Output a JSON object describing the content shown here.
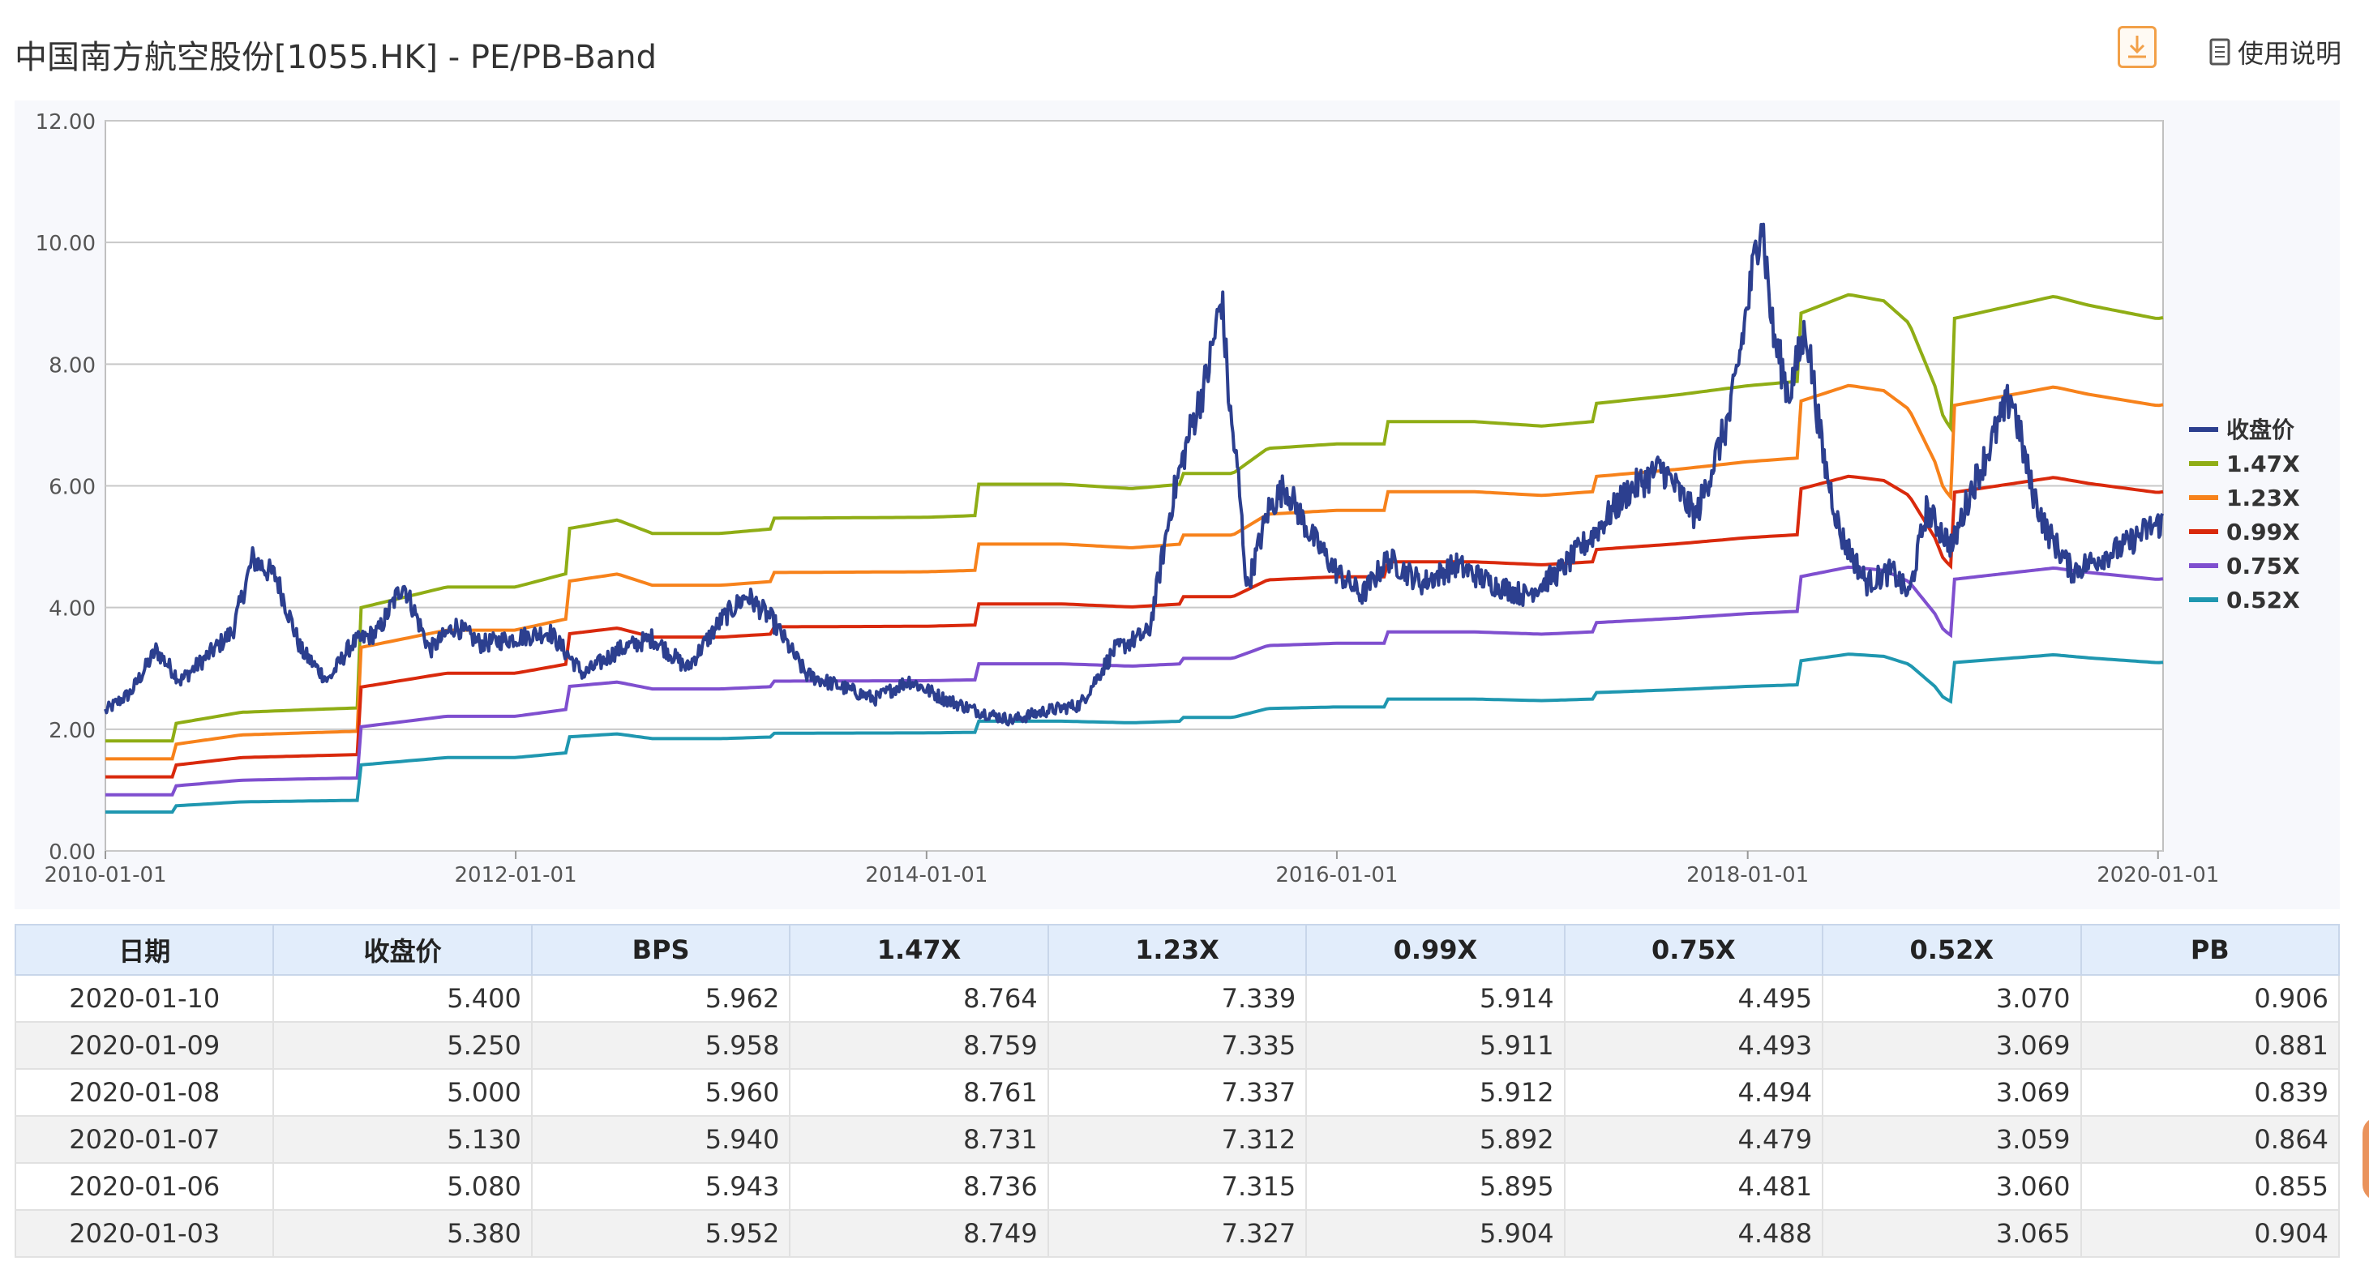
{
  "page": {
    "title": "中国南方航空股份[1055.HK] - PE/PB-Band",
    "help_label": "使用说明",
    "download_icon": "download-icon",
    "help_icon": "document-icon"
  },
  "colors": {
    "price": "#2c3f8f",
    "band_147": "#8fad15",
    "band_123": "#f7821b",
    "band_099": "#d9290c",
    "band_075": "#7f4fcf",
    "band_052": "#1f97b0",
    "grid": "#c8c8c8",
    "header_bg": "#e2edfb"
  },
  "chart_data": {
    "type": "line",
    "title": "",
    "xlabel": "",
    "ylabel": "",
    "x_range": [
      "2010-01-01",
      "2020-01-10"
    ],
    "ylim": [
      0,
      12
    ],
    "yticks": [
      "0.00",
      "2.00",
      "4.00",
      "6.00",
      "8.00",
      "10.00",
      "12.00"
    ],
    "xticks": [
      "2010-01-01",
      "2012-01-01",
      "2014-01-01",
      "2016-01-01",
      "2018-01-01",
      "2020-01-01"
    ],
    "grid": true,
    "legend_position": "right",
    "legend": [
      "收盘价",
      "1.47X",
      "1.23X",
      "0.99X",
      "0.75X",
      "0.52X"
    ],
    "bps": {
      "name": "BPS",
      "points": [
        [
          "2010-01-01",
          1.23
        ],
        [
          "2010-04-30",
          1.23
        ],
        [
          "2010-05-01",
          1.42
        ],
        [
          "2010-08-31",
          1.55
        ],
        [
          "2011-01-01",
          1.58
        ],
        [
          "2011-03-31",
          1.6
        ],
        [
          "2011-04-01",
          2.72
        ],
        [
          "2011-08-31",
          2.95
        ],
        [
          "2011-12-31",
          2.95
        ],
        [
          "2012-03-31",
          3.1
        ],
        [
          "2012-04-01",
          3.6
        ],
        [
          "2012-06-30",
          3.7
        ],
        [
          "2012-08-31",
          3.55
        ],
        [
          "2012-12-31",
          3.55
        ],
        [
          "2013-03-31",
          3.6
        ],
        [
          "2013-04-01",
          3.72
        ],
        [
          "2013-12-31",
          3.73
        ],
        [
          "2014-03-31",
          3.75
        ],
        [
          "2014-04-01",
          4.1
        ],
        [
          "2014-08-31",
          4.1
        ],
        [
          "2014-12-31",
          4.05
        ],
        [
          "2015-03-31",
          4.1
        ],
        [
          "2015-04-01",
          4.22
        ],
        [
          "2015-06-30",
          4.22
        ],
        [
          "2015-08-31",
          4.5
        ],
        [
          "2015-12-31",
          4.55
        ],
        [
          "2016-03-31",
          4.55
        ],
        [
          "2016-04-01",
          4.8
        ],
        [
          "2016-08-31",
          4.8
        ],
        [
          "2016-12-31",
          4.75
        ],
        [
          "2017-03-31",
          4.8
        ],
        [
          "2017-04-01",
          5.0
        ],
        [
          "2017-08-31",
          5.1
        ],
        [
          "2017-12-31",
          5.2
        ],
        [
          "2018-03-31",
          5.25
        ],
        [
          "2018-04-01",
          6.0
        ],
        [
          "2018-06-30",
          6.22
        ],
        [
          "2018-08-31",
          6.15
        ],
        [
          "2018-10-15",
          5.9
        ],
        [
          "2018-11-30",
          5.2
        ],
        [
          "2018-12-15",
          4.85
        ],
        [
          "2018-12-31",
          4.7
        ],
        [
          "2019-01-01",
          5.95
        ],
        [
          "2019-06-30",
          6.2
        ],
        [
          "2019-08-31",
          6.1
        ],
        [
          "2019-12-31",
          5.95
        ],
        [
          "2020-01-10",
          5.962
        ]
      ]
    },
    "bands": [
      1.47,
      1.23,
      0.99,
      0.75,
      0.52
    ],
    "series": [
      {
        "name": "收盘价",
        "values": [
          [
            "2010-01-01",
            2.3
          ],
          [
            "2010-02-15",
            2.6
          ],
          [
            "2010-04-01",
            3.3
          ],
          [
            "2010-05-15",
            2.8
          ],
          [
            "2010-07-01",
            3.2
          ],
          [
            "2010-08-15",
            3.6
          ],
          [
            "2010-09-20",
            4.8
          ],
          [
            "2010-11-01",
            4.5
          ],
          [
            "2010-12-15",
            3.3
          ],
          [
            "2011-02-01",
            2.8
          ],
          [
            "2011-03-15",
            3.4
          ],
          [
            "2011-05-01",
            3.6
          ],
          [
            "2011-06-15",
            4.4
          ],
          [
            "2011-08-01",
            3.3
          ],
          [
            "2011-09-15",
            3.7
          ],
          [
            "2011-11-01",
            3.4
          ],
          [
            "2012-01-01",
            3.5
          ],
          [
            "2012-03-01",
            3.6
          ],
          [
            "2012-05-01",
            2.9
          ],
          [
            "2012-07-01",
            3.3
          ],
          [
            "2012-09-01",
            3.5
          ],
          [
            "2012-11-01",
            3.0
          ],
          [
            "2013-01-01",
            3.8
          ],
          [
            "2013-02-15",
            4.2
          ],
          [
            "2013-04-01",
            3.8
          ],
          [
            "2013-06-01",
            2.9
          ],
          [
            "2013-08-01",
            2.7
          ],
          [
            "2013-10-01",
            2.5
          ],
          [
            "2013-12-01",
            2.8
          ],
          [
            "2014-02-01",
            2.5
          ],
          [
            "2014-04-01",
            2.3
          ],
          [
            "2014-06-01",
            2.15
          ],
          [
            "2014-08-01",
            2.3
          ],
          [
            "2014-10-01",
            2.4
          ],
          [
            "2014-12-01",
            3.3
          ],
          [
            "2015-02-01",
            3.6
          ],
          [
            "2015-03-15",
            5.8
          ],
          [
            "2015-04-15",
            6.9
          ],
          [
            "2015-05-15",
            7.8
          ],
          [
            "2015-06-10",
            9.1
          ],
          [
            "2015-06-25",
            7.2
          ],
          [
            "2015-07-10",
            6.1
          ],
          [
            "2015-07-25",
            4.3
          ],
          [
            "2015-09-01",
            5.6
          ],
          [
            "2015-10-01",
            6.0
          ],
          [
            "2015-11-15",
            5.2
          ],
          [
            "2015-12-31",
            4.6
          ],
          [
            "2016-02-15",
            4.2
          ],
          [
            "2016-04-01",
            4.8
          ],
          [
            "2016-06-01",
            4.4
          ],
          [
            "2016-08-01",
            4.7
          ],
          [
            "2016-10-01",
            4.4
          ],
          [
            "2016-12-01",
            4.2
          ],
          [
            "2017-02-01",
            4.6
          ],
          [
            "2017-04-01",
            5.2
          ],
          [
            "2017-06-01",
            5.9
          ],
          [
            "2017-08-01",
            6.3
          ],
          [
            "2017-10-01",
            5.5
          ],
          [
            "2017-12-01",
            7.2
          ],
          [
            "2018-01-10",
            9.5
          ],
          [
            "2018-01-25",
            10.5
          ],
          [
            "2018-02-15",
            8.5
          ],
          [
            "2018-03-15",
            7.5
          ],
          [
            "2018-04-15",
            8.6
          ],
          [
            "2018-05-15",
            6.5
          ],
          [
            "2018-06-15",
            5.2
          ],
          [
            "2018-08-01",
            4.4
          ],
          [
            "2018-09-15",
            4.6
          ],
          [
            "2018-10-15",
            4.2
          ],
          [
            "2018-11-15",
            5.6
          ],
          [
            "2018-12-31",
            5.0
          ],
          [
            "2019-02-01",
            5.9
          ],
          [
            "2019-03-01",
            6.5
          ],
          [
            "2019-04-15",
            7.5
          ],
          [
            "2019-05-20",
            6.0
          ],
          [
            "2019-06-15",
            5.3
          ],
          [
            "2019-08-01",
            4.6
          ],
          [
            "2019-09-15",
            4.8
          ],
          [
            "2019-11-01",
            5.0
          ],
          [
            "2019-12-15",
            5.3
          ],
          [
            "2020-01-10",
            5.4
          ]
        ]
      },
      {
        "name": "1.47X",
        "factor": 1.47
      },
      {
        "name": "1.23X",
        "factor": 1.23
      },
      {
        "name": "0.99X",
        "factor": 0.99
      },
      {
        "name": "0.75X",
        "factor": 0.75
      },
      {
        "name": "0.52X",
        "factor": 0.52
      }
    ]
  },
  "table": {
    "headers": [
      "日期",
      "收盘价",
      "BPS",
      "1.47X",
      "1.23X",
      "0.99X",
      "0.75X",
      "0.52X",
      "PB"
    ],
    "rows": [
      [
        "2020-01-10",
        "5.400",
        "5.962",
        "8.764",
        "7.339",
        "5.914",
        "4.495",
        "3.070",
        "0.906"
      ],
      [
        "2020-01-09",
        "5.250",
        "5.958",
        "8.759",
        "7.335",
        "5.911",
        "4.493",
        "3.069",
        "0.881"
      ],
      [
        "2020-01-08",
        "5.000",
        "5.960",
        "8.761",
        "7.337",
        "5.912",
        "4.494",
        "3.069",
        "0.839"
      ],
      [
        "2020-01-07",
        "5.130",
        "5.940",
        "8.731",
        "7.312",
        "5.892",
        "4.479",
        "3.059",
        "0.864"
      ],
      [
        "2020-01-06",
        "5.080",
        "5.943",
        "8.736",
        "7.315",
        "5.895",
        "4.481",
        "3.060",
        "0.855"
      ],
      [
        "2020-01-03",
        "5.380",
        "5.952",
        "8.749",
        "7.327",
        "5.904",
        "4.488",
        "3.065",
        "0.904"
      ]
    ]
  }
}
